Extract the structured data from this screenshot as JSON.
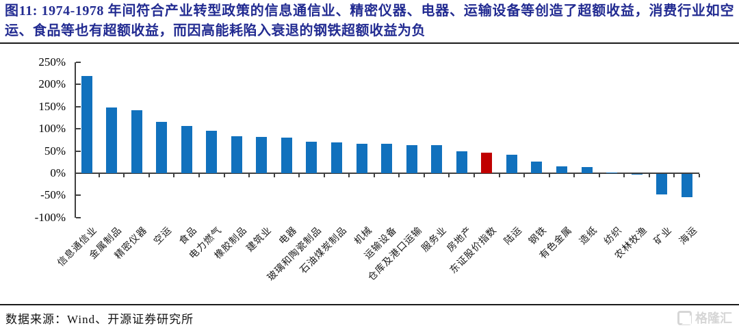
{
  "figure": {
    "title": "图11:  1974-1978 年间符合产业转型政策的信息通信业、精密仪器、电器、运输设备等创造了超额收益，消费行业如空运、食品等也有超额收益，而因高能耗陷入衰退的钢铁超额收益为负"
  },
  "chart_data": {
    "type": "bar",
    "title": "",
    "xlabel": "",
    "ylabel": "",
    "categories": [
      "信息通信业",
      "金属制品",
      "精密仪器",
      "空运",
      "食品",
      "电力燃气",
      "橡胶制品",
      "建筑业",
      "电器",
      "玻璃和陶瓷制品",
      "石油煤炭制品",
      "机械",
      "运输设备",
      "仓库及港口运输",
      "服务业",
      "房地产",
      "东证股价指数",
      "陆运",
      "钢铁",
      "有色金属",
      "造纸",
      "纺织",
      "农林牧渔",
      "矿业",
      "海运"
    ],
    "values": [
      219,
      148,
      142,
      115,
      107,
      96,
      83,
      82,
      80,
      71,
      69,
      67,
      66,
      64,
      63,
      49,
      46,
      41,
      26,
      16,
      14,
      2,
      -1,
      -46,
      -53
    ],
    "unit": "%",
    "yticks": [
      250,
      200,
      150,
      100,
      50,
      0,
      -50,
      -100
    ],
    "ylim": [
      -100,
      250
    ],
    "grid": false,
    "legend_position": "none",
    "bar_color": "#1171bd",
    "highlight": {
      "index": 16,
      "category": "东证股价指数",
      "color": "#c00000"
    }
  },
  "footer": {
    "source": "数据来源：Wind、开源证券研究所",
    "logo_text": "格隆汇"
  },
  "colors": {
    "title_text": "#222b91",
    "axis": "#3f3f3f",
    "separator": "#1a1a1a",
    "logo_gray": "#d6d6d6"
  }
}
